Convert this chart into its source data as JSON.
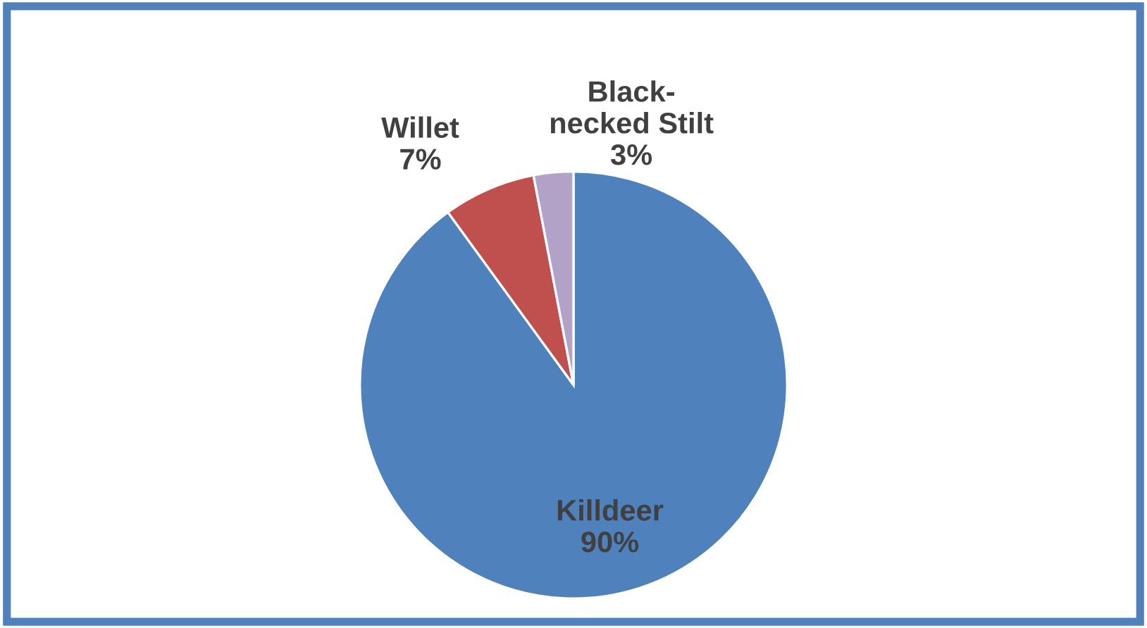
{
  "chart_data": {
    "type": "pie",
    "categories": [
      "Killdeer",
      "Willet",
      "Black-necked Stilt"
    ],
    "values": [
      90,
      7,
      3
    ],
    "colors": [
      "#4f81bd",
      "#c0504d",
      "#b3a2c7"
    ],
    "value_labels": [
      "90%",
      "7%",
      "3%"
    ],
    "legend": false
  }
}
